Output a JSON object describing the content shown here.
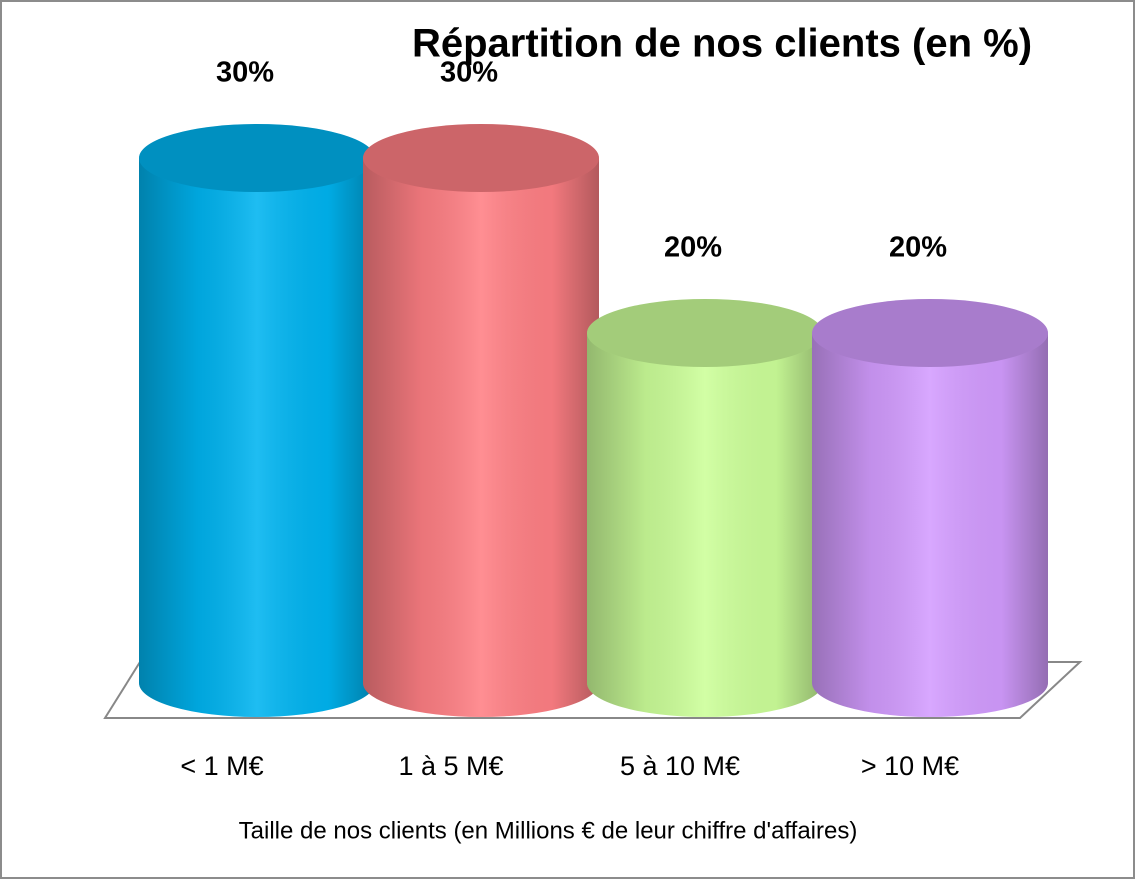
{
  "chart_data": {
    "type": "bar",
    "title": "Répartition de nos clients (en %)",
    "x_label": "Taille de nos clients (en Millions € de leur chiffre d'affaires)",
    "categories": [
      "< 1 M€",
      "1 à 5 M€",
      "5 à 10 M€",
      "> 10 M€"
    ],
    "values": [
      30,
      30,
      20,
      20
    ],
    "value_labels": [
      "30%",
      "30%",
      "20%",
      "20%"
    ],
    "colors": [
      "#00b4f0",
      "#ff7f84",
      "#ccff99",
      "#d39cff"
    ]
  }
}
